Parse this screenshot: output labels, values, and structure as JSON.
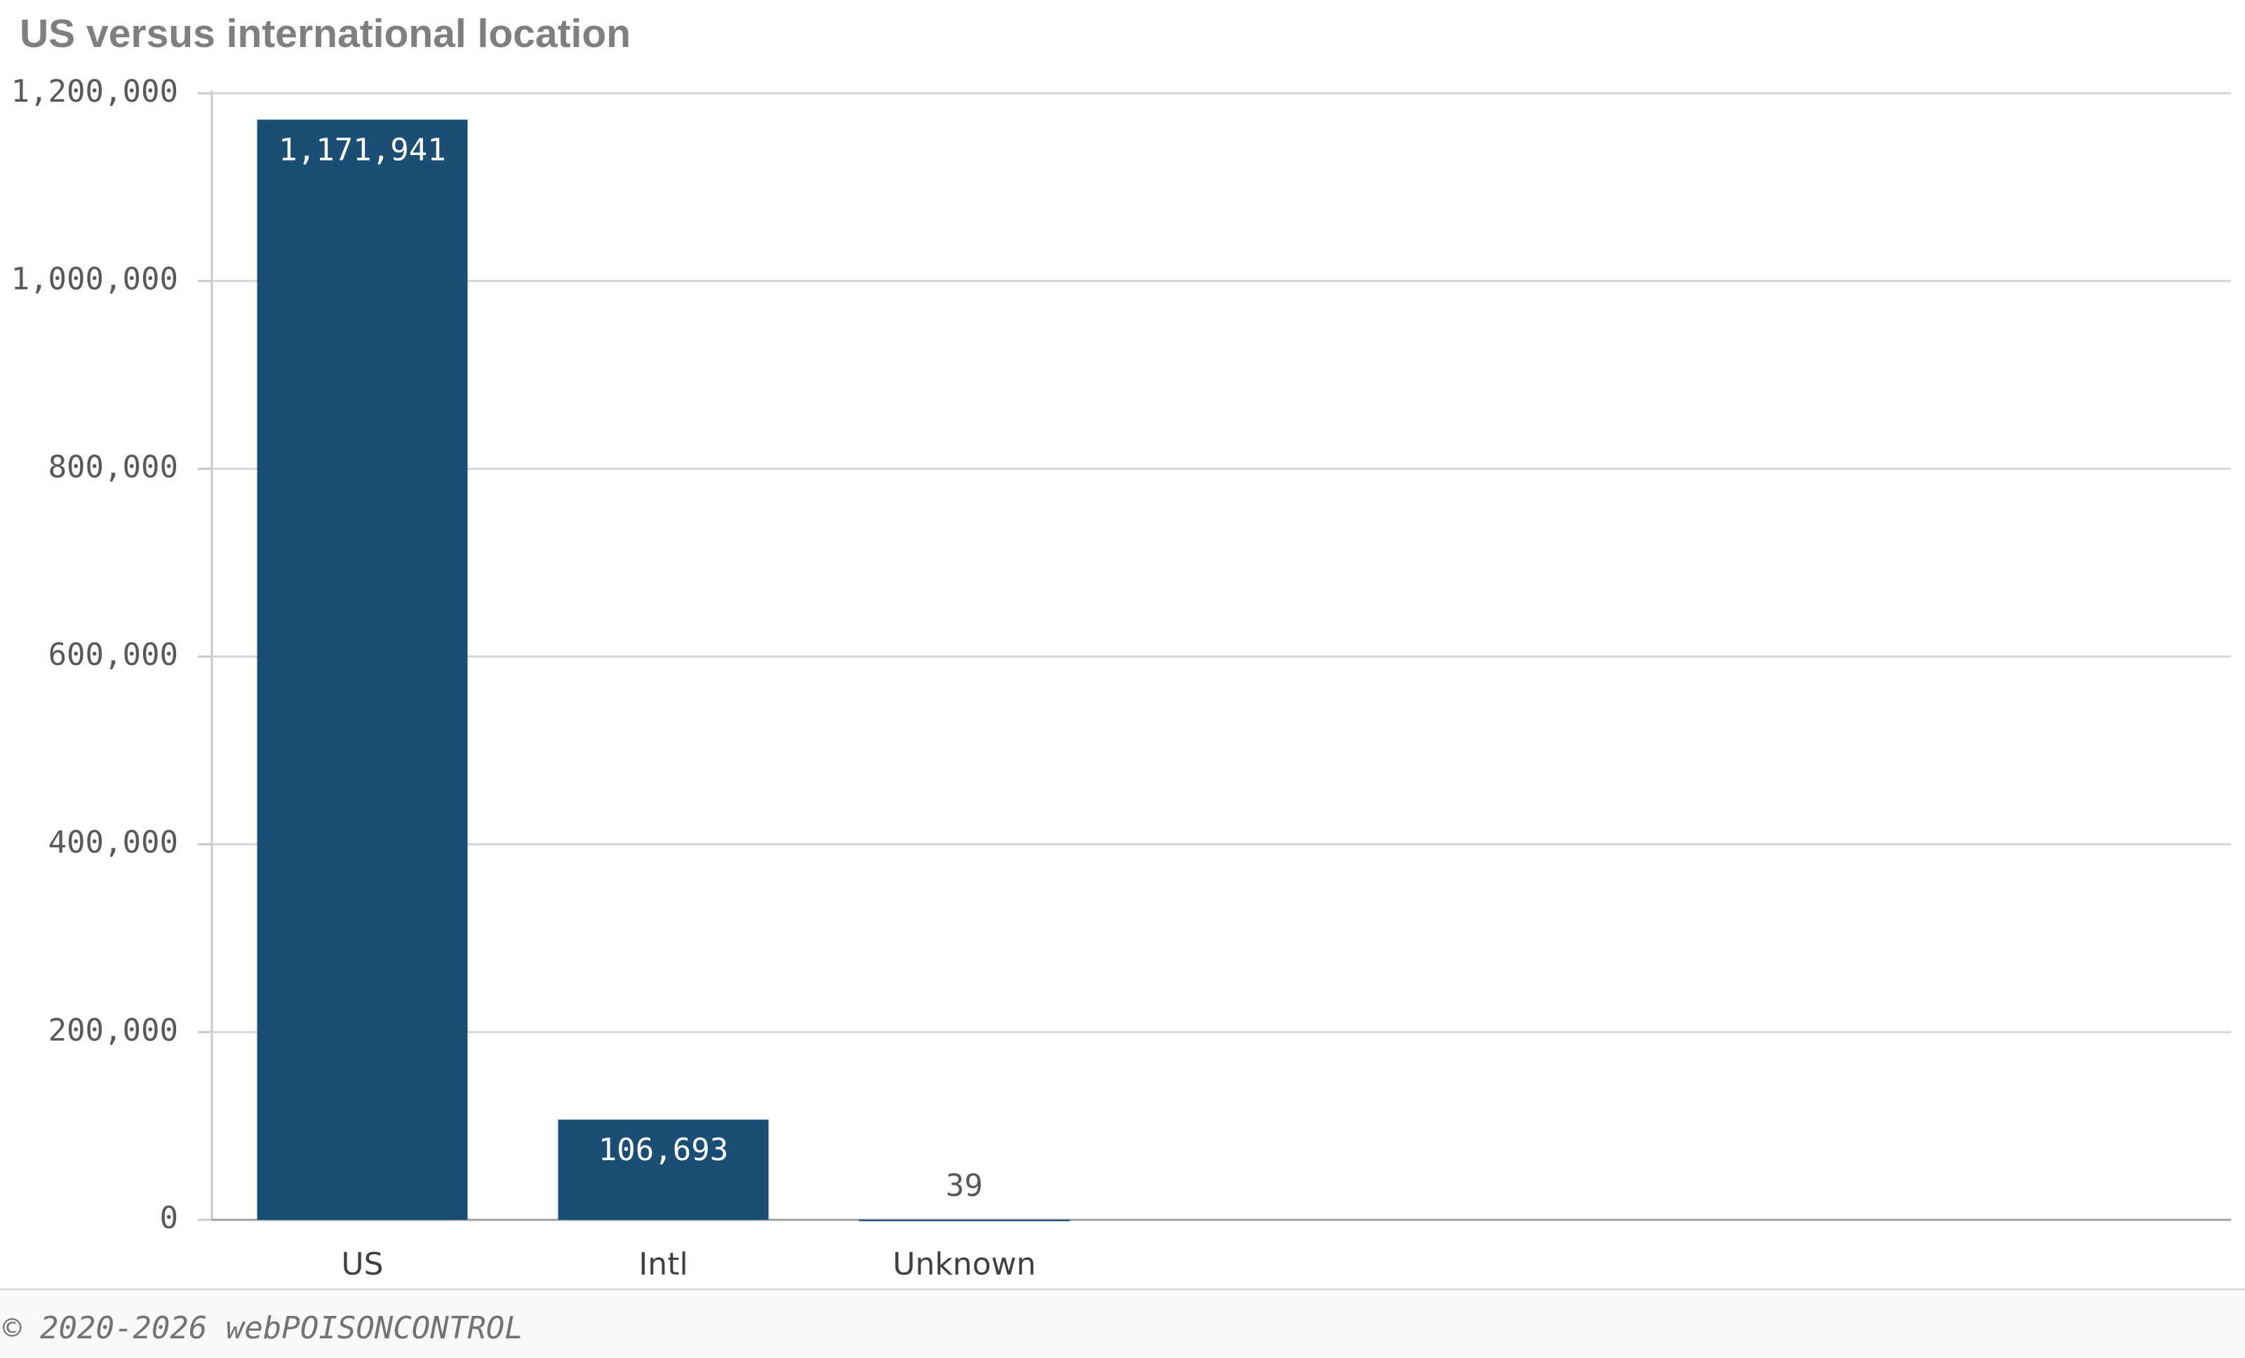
{
  "chart_data": {
    "type": "bar",
    "title": "US versus international location",
    "categories": [
      "US",
      "Intl",
      "Unknown"
    ],
    "values": [
      1171941,
      106693,
      39
    ],
    "value_labels": [
      "1,171,941",
      "106,693",
      "39"
    ],
    "color": "#1a4e74",
    "ylim": [
      0,
      1200000
    ],
    "yticks": [
      0,
      {
        "value": 200000,
        "label": "200,000"
      },
      {
        "value": 400000,
        "label": "400,000"
      },
      {
        "value": 600000,
        "label": "600,000"
      },
      {
        "value": 800000,
        "label": "800,000"
      },
      {
        "value": 1000000,
        "label": "1,000,000"
      },
      {
        "value": 1200000,
        "label": "1,200,000"
      }
    ],
    "grid": true
  },
  "footer": "© 2020-2026 webPOISONCONTROL"
}
